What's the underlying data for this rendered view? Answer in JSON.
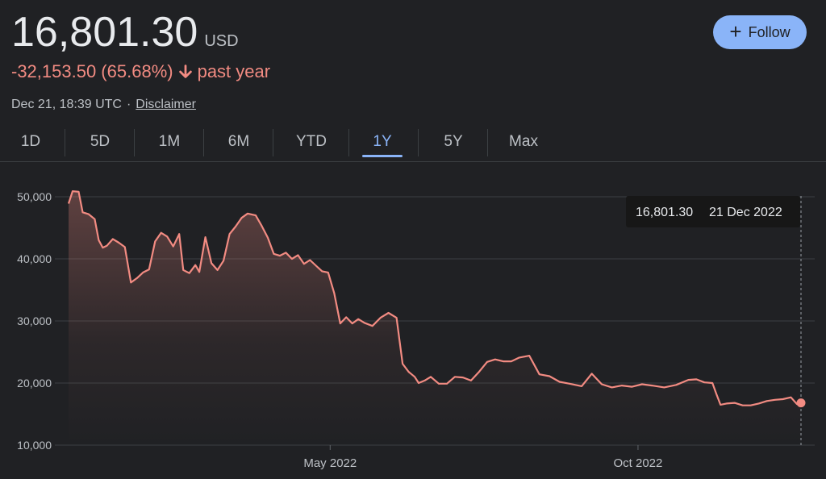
{
  "header": {
    "price": "16,801.30",
    "currency": "USD",
    "change": "-32,153.50 (65.68%)",
    "period": "past year",
    "timestamp": "Dec 21, 18:39 UTC",
    "separator": "·",
    "disclaimer": "Disclaimer",
    "follow_label": "Follow",
    "down_color": "#f28b82",
    "accent_color": "#8ab4f8"
  },
  "tabs": [
    {
      "label": "1D",
      "active": false
    },
    {
      "label": "5D",
      "active": false
    },
    {
      "label": "1M",
      "active": false
    },
    {
      "label": "6M",
      "active": false
    },
    {
      "label": "YTD",
      "active": false
    },
    {
      "label": "1Y",
      "active": true
    },
    {
      "label": "5Y",
      "active": false
    },
    {
      "label": "Max",
      "active": false
    }
  ],
  "tooltip": {
    "value": "16,801.30",
    "date": "21 Dec 2022"
  },
  "chart_data": {
    "type": "area",
    "title": "",
    "xlabel": "",
    "ylabel": "",
    "x_range": [
      "2021-12-22",
      "2022-12-21"
    ],
    "ylim": [
      10000,
      51000
    ],
    "yticks": [
      10000,
      20000,
      30000,
      40000,
      50000
    ],
    "ytick_labels": [
      "10,000",
      "20,000",
      "30,000",
      "40,000",
      "50,000"
    ],
    "xticks": [
      "2022-05-01",
      "2022-10-01"
    ],
    "xtick_labels": [
      "May 2022",
      "Oct 2022"
    ],
    "grid": true,
    "line_color": "#f28b82",
    "series": [
      {
        "x": [
          "2021-12-22",
          "2021-12-24",
          "2021-12-27",
          "2021-12-29",
          "2022-01-01",
          "2022-01-04",
          "2022-01-06",
          "2022-01-08",
          "2022-01-10",
          "2022-01-13",
          "2022-01-16",
          "2022-01-19",
          "2022-01-22",
          "2022-01-25",
          "2022-01-28",
          "2022-01-31",
          "2022-02-03",
          "2022-02-06",
          "2022-02-09",
          "2022-02-12",
          "2022-02-15",
          "2022-02-17",
          "2022-02-20",
          "2022-02-23",
          "2022-02-25",
          "2022-02-28",
          "2022-03-03",
          "2022-03-06",
          "2022-03-09",
          "2022-03-12",
          "2022-03-15",
          "2022-03-18",
          "2022-03-21",
          "2022-03-25",
          "2022-03-28",
          "2022-03-31",
          "2022-04-03",
          "2022-04-06",
          "2022-04-09",
          "2022-04-12",
          "2022-04-15",
          "2022-04-18",
          "2022-04-21",
          "2022-04-24",
          "2022-04-27",
          "2022-04-30",
          "2022-05-03",
          "2022-05-06",
          "2022-05-09",
          "2022-05-12",
          "2022-05-15",
          "2022-05-18",
          "2022-05-22",
          "2022-05-26",
          "2022-05-30",
          "2022-06-03",
          "2022-06-06",
          "2022-06-09",
          "2022-06-12",
          "2022-06-14",
          "2022-06-17",
          "2022-06-20",
          "2022-06-24",
          "2022-06-28",
          "2022-07-02",
          "2022-07-06",
          "2022-07-10",
          "2022-07-14",
          "2022-07-18",
          "2022-07-22",
          "2022-07-26",
          "2022-07-30",
          "2022-08-03",
          "2022-08-08",
          "2022-08-13",
          "2022-08-18",
          "2022-08-23",
          "2022-08-28",
          "2022-09-03",
          "2022-09-08",
          "2022-09-13",
          "2022-09-18",
          "2022-09-23",
          "2022-09-28",
          "2022-10-03",
          "2022-10-08",
          "2022-10-14",
          "2022-10-20",
          "2022-10-26",
          "2022-10-30",
          "2022-11-03",
          "2022-11-07",
          "2022-11-09",
          "2022-11-11",
          "2022-11-14",
          "2022-11-18",
          "2022-11-22",
          "2022-11-26",
          "2022-11-30",
          "2022-12-04",
          "2022-12-08",
          "2022-12-12",
          "2022-12-16",
          "2022-12-19",
          "2022-12-21"
        ],
        "values": [
          48900,
          50900,
          50800,
          47500,
          47200,
          46400,
          43000,
          41800,
          42100,
          43200,
          42600,
          41900,
          36200,
          36900,
          37800,
          38300,
          42800,
          44200,
          43600,
          42000,
          44000,
          38200,
          37700,
          39000,
          37900,
          43500,
          39300,
          38200,
          39700,
          44000,
          45200,
          46600,
          47300,
          47000,
          45300,
          43400,
          40800,
          40500,
          41000,
          40000,
          40600,
          39200,
          39800,
          38900,
          38000,
          37800,
          34500,
          29600,
          30600,
          29600,
          30300,
          29700,
          29200,
          30500,
          31300,
          30500,
          23100,
          21800,
          21000,
          20000,
          20400,
          21000,
          19900,
          19900,
          21000,
          20900,
          20400,
          21800,
          23400,
          23800,
          23500,
          23500,
          24100,
          24400,
          21400,
          21100,
          20200,
          19900,
          19500,
          21500,
          19800,
          19300,
          19600,
          19400,
          19800,
          19600,
          19300,
          19700,
          20500,
          20600,
          20100,
          20000,
          18200,
          16500,
          16700,
          16800,
          16400,
          16400,
          16700,
          17100,
          17300,
          17400,
          17700,
          16600,
          16801
        ]
      }
    ]
  }
}
